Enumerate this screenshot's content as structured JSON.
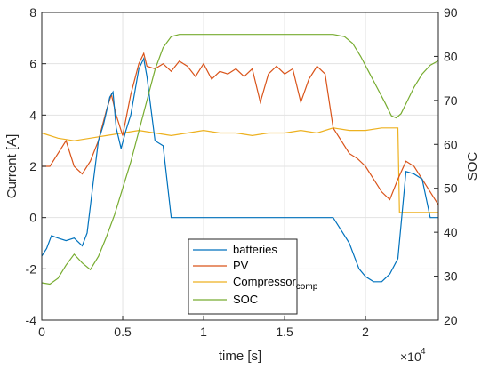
{
  "chart_data": {
    "type": "line",
    "xlabel": "time [s]",
    "ylabel_left": "Current [A]",
    "ylabel_right": "SOC",
    "x_exponent_label": "×10",
    "x_exponent_power": "4",
    "xlim": [
      0,
      24500
    ],
    "ylim_left": [
      -4,
      8
    ],
    "ylim_right": [
      20,
      90
    ],
    "xticks": [
      0,
      5000,
      10000,
      15000,
      20000
    ],
    "xtick_labels": [
      "0",
      "0.5",
      "1",
      "1.5",
      "2"
    ],
    "yticks_left": [
      -4,
      -2,
      0,
      2,
      4,
      6,
      8
    ],
    "ytick_labels_left": [
      "-4",
      "-2",
      "0",
      "2",
      "4",
      "6",
      "8"
    ],
    "yticks_right": [
      20,
      30,
      40,
      50,
      60,
      70,
      80,
      90
    ],
    "ytick_labels_right": [
      "20",
      "30",
      "40",
      "50",
      "60",
      "70",
      "80",
      "90"
    ],
    "grid": true,
    "legend_position": "bottom-center",
    "colors": {
      "batteries": "#0072BD",
      "PV": "#D95319",
      "Compressor": "#EDB120",
      "SOC": "#77AC30"
    },
    "series": [
      {
        "name": "batteries",
        "axis": "left",
        "x": [
          0,
          300,
          600,
          1000,
          1500,
          2000,
          2500,
          2800,
          3200,
          3500,
          3800,
          4200,
          4400,
          4600,
          4900,
          5200,
          5500,
          6000,
          6300,
          6500,
          7000,
          7500,
          8000,
          8500,
          9000,
          10000,
          11000,
          12000,
          13000,
          14000,
          15000,
          16000,
          17000,
          18000,
          18500,
          19000,
          19300,
          19600,
          20000,
          20500,
          21000,
          21500,
          22000,
          22500,
          23000,
          23500,
          24000,
          24500
        ],
        "y": [
          -1.5,
          -1.2,
          -0.7,
          -0.8,
          -0.9,
          -0.8,
          -1.1,
          -0.6,
          1.5,
          3.0,
          3.6,
          4.7,
          4.9,
          3.5,
          2.7,
          3.4,
          4.0,
          5.8,
          6.2,
          5.5,
          3.0,
          2.8,
          0,
          0,
          0,
          0,
          0,
          0,
          0,
          0,
          0,
          0,
          0,
          0,
          -0.5,
          -1.0,
          -1.5,
          -2.0,
          -2.3,
          -2.5,
          -2.5,
          -2.2,
          -1.6,
          1.8,
          1.7,
          1.5,
          0,
          0
        ]
      },
      {
        "name": "PV",
        "axis": "left",
        "x": [
          0,
          500,
          1000,
          1500,
          2000,
          2500,
          3000,
          3500,
          4000,
          4300,
          4600,
          5000,
          5500,
          6000,
          6300,
          6500,
          7000,
          7500,
          8000,
          8500,
          9000,
          9500,
          10000,
          10500,
          11000,
          11500,
          12000,
          12500,
          13000,
          13500,
          14000,
          14500,
          15000,
          15500,
          16000,
          16500,
          17000,
          17500,
          18000,
          18500,
          19000,
          19500,
          20000,
          20500,
          21000,
          21500,
          22000,
          22500,
          23000,
          23500,
          24000,
          24500
        ],
        "y": [
          2.0,
          2.0,
          2.5,
          3.0,
          2.0,
          1.7,
          2.2,
          3.0,
          4.2,
          4.8,
          4.0,
          3.2,
          4.8,
          6.0,
          6.4,
          5.9,
          5.8,
          6.0,
          5.7,
          6.1,
          5.9,
          5.5,
          6.0,
          5.4,
          5.7,
          5.6,
          5.8,
          5.5,
          5.8,
          4.5,
          5.6,
          5.9,
          5.6,
          5.8,
          4.5,
          5.4,
          5.9,
          5.6,
          3.5,
          3.0,
          2.5,
          2.3,
          2.0,
          1.5,
          1.0,
          0.7,
          1.5,
          2.2,
          2.0,
          1.5,
          1.0,
          0.5
        ]
      },
      {
        "name": "Compressor_comp",
        "axis": "left",
        "x": [
          0,
          1000,
          2000,
          3000,
          4000,
          5000,
          6000,
          7000,
          8000,
          9000,
          10000,
          11000,
          12000,
          13000,
          14000,
          15000,
          16000,
          17000,
          18000,
          19000,
          20000,
          21000,
          22000,
          22100,
          23000,
          24000,
          24500
        ],
        "y": [
          3.3,
          3.1,
          3.0,
          3.1,
          3.2,
          3.3,
          3.4,
          3.3,
          3.2,
          3.3,
          3.4,
          3.3,
          3.3,
          3.2,
          3.3,
          3.3,
          3.4,
          3.3,
          3.5,
          3.4,
          3.4,
          3.5,
          3.5,
          0.2,
          0.2,
          0.2,
          0.2
        ]
      },
      {
        "name": "SOC",
        "axis": "right",
        "x": [
          0,
          500,
          1000,
          1500,
          2000,
          2500,
          3000,
          3500,
          4000,
          4500,
          5000,
          5500,
          6000,
          6500,
          7000,
          7500,
          8000,
          8500,
          9000,
          10000,
          11000,
          12000,
          13000,
          14000,
          15000,
          16000,
          17000,
          18000,
          18700,
          19200,
          19700,
          20200,
          20700,
          21200,
          21600,
          21900,
          22200,
          22600,
          23000,
          23500,
          24000,
          24500
        ],
        "y": [
          28.5,
          28.2,
          29.5,
          32.5,
          35.0,
          33.0,
          31.5,
          34.5,
          39.0,
          44.0,
          50.0,
          56.0,
          63.0,
          70.0,
          77.0,
          82.0,
          84.5,
          85.0,
          85.0,
          85.0,
          85.0,
          85.0,
          85.0,
          85.0,
          85.0,
          85.0,
          85.0,
          85.0,
          84.5,
          83.0,
          80.0,
          76.5,
          73.0,
          69.5,
          66.5,
          66.0,
          67.0,
          70.0,
          73.0,
          76.0,
          78.0,
          79.0
        ]
      }
    ],
    "legend": {
      "entries": [
        "batteries",
        "PV",
        "Compressor",
        "SOC"
      ],
      "compressor_subscript": "comp"
    }
  }
}
